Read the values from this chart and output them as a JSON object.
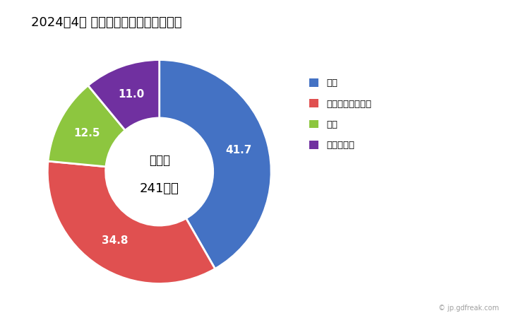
{
  "title": "2024年4月 輸出相手国のシェア（％）",
  "labels": [
    "英国",
    "アラブ首長国連邦",
    "韓国",
    "フィリピン"
  ],
  "values": [
    41.7,
    34.8,
    12.5,
    11.0
  ],
  "colors": [
    "#4472C4",
    "#E05050",
    "#8DC63F",
    "#7030A0"
  ],
  "center_text_line1": "総　額",
  "center_text_line2": "241万円",
  "watermark": "© jp.gdfreak.com",
  "background_color": "#FFFFFF",
  "title_fontsize": 13,
  "legend_labels": [
    "英国",
    "アラブ首長国連邦",
    "韓国",
    "フィリピン"
  ]
}
